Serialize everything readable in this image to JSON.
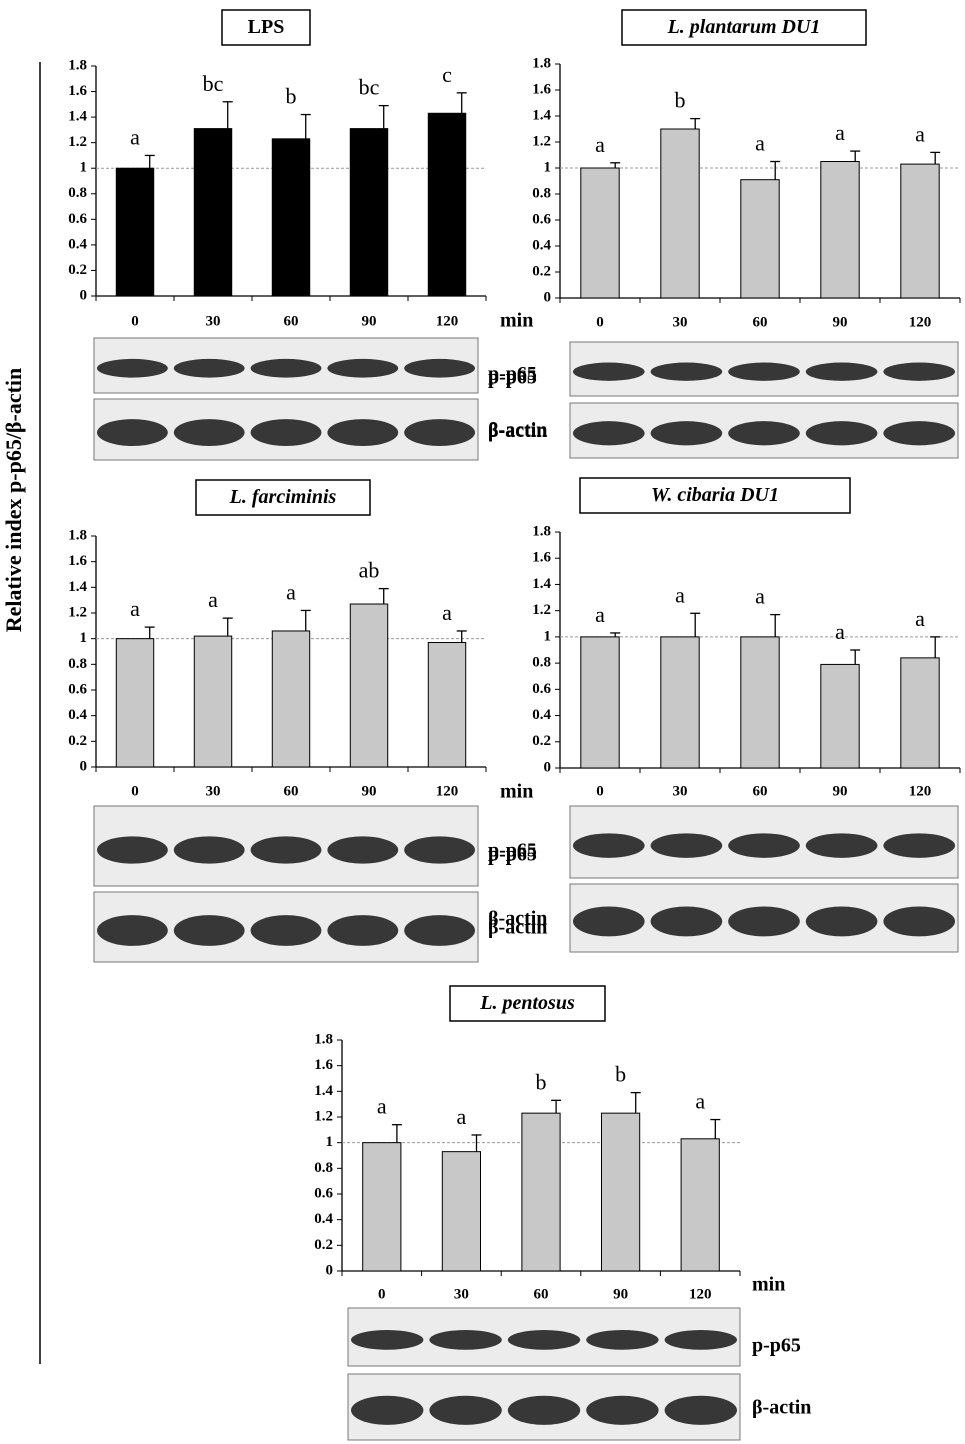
{
  "y_label": "Relative index p-p65/β-actin",
  "chart_data": [
    {
      "type": "bar",
      "title": "LPS",
      "title_italic": false,
      "categories": [
        "0",
        "30",
        "60",
        "90",
        "120"
      ],
      "values": [
        1.0,
        1.31,
        1.23,
        1.31,
        1.43
      ],
      "errors": [
        0.1,
        0.21,
        0.19,
        0.18,
        0.16
      ],
      "annotations": [
        "a",
        "bc",
        "b",
        "bc",
        "c"
      ],
      "color": "#000000",
      "ylim": [
        0,
        1.8
      ],
      "yticks": [
        0,
        0.2,
        0.4,
        0.6,
        0.8,
        1,
        1.2,
        1.4,
        1.6,
        1.8
      ],
      "reference_line": 1,
      "blot_labels": [
        "p-p65",
        "β-actin"
      ]
    },
    {
      "type": "bar",
      "title": "L. plantarum DU1",
      "title_italic": true,
      "categories": [
        "0",
        "30",
        "60",
        "90",
        "120"
      ],
      "values": [
        1.0,
        1.3,
        0.91,
        1.05,
        1.03
      ],
      "errors": [
        0.04,
        0.08,
        0.14,
        0.08,
        0.09
      ],
      "annotations": [
        "a",
        "b",
        "a",
        "a",
        "a"
      ],
      "color": "#c8c8c8",
      "ylim": [
        0,
        1.8
      ],
      "yticks": [
        0,
        0.2,
        0.4,
        0.6,
        0.8,
        1,
        1.2,
        1.4,
        1.6,
        1.8
      ],
      "reference_line": 1,
      "x_label": "min",
      "blot_labels": [
        "p-p65",
        "β-actin"
      ]
    },
    {
      "type": "bar",
      "title": "L. farciminis",
      "title_italic": true,
      "categories": [
        "0",
        "30",
        "60",
        "90",
        "120"
      ],
      "values": [
        1.0,
        1.02,
        1.06,
        1.27,
        0.97
      ],
      "errors": [
        0.09,
        0.14,
        0.16,
        0.12,
        0.09
      ],
      "annotations": [
        "a",
        "a",
        "a",
        "ab",
        "a"
      ],
      "color": "#c8c8c8",
      "ylim": [
        0,
        1.8
      ],
      "yticks": [
        0,
        0.2,
        0.4,
        0.6,
        0.8,
        1,
        1.2,
        1.4,
        1.6,
        1.8
      ],
      "reference_line": 1,
      "x_label": "min",
      "blot_labels": [
        "p-p65",
        "β-actin"
      ]
    },
    {
      "type": "bar",
      "title": "W. cibaria DU1",
      "title_italic": true,
      "categories": [
        "0",
        "30",
        "60",
        "90",
        "120"
      ],
      "values": [
        1.0,
        1.0,
        1.0,
        0.79,
        0.84
      ],
      "errors": [
        0.03,
        0.18,
        0.17,
        0.11,
        0.16
      ],
      "annotations": [
        "a",
        "a",
        "a",
        "a",
        "a"
      ],
      "color": "#c8c8c8",
      "ylim": [
        0,
        1.8
      ],
      "yticks": [
        0,
        0.2,
        0.4,
        0.6,
        0.8,
        1,
        1.2,
        1.4,
        1.6,
        1.8
      ],
      "reference_line": 1,
      "blot_labels": [
        "p-p65",
        "β-actin"
      ]
    },
    {
      "type": "bar",
      "title": "L. pentosus",
      "title_italic": true,
      "categories": [
        "0",
        "30",
        "60",
        "90",
        "120"
      ],
      "values": [
        1.0,
        0.93,
        1.23,
        1.23,
        1.03
      ],
      "errors": [
        0.14,
        0.13,
        0.1,
        0.16,
        0.15
      ],
      "annotations": [
        "a",
        "a",
        "b",
        "b",
        "a"
      ],
      "color": "#c8c8c8",
      "ylim": [
        0,
        1.8
      ],
      "yticks": [
        0,
        0.2,
        0.4,
        0.6,
        0.8,
        1,
        1.2,
        1.4,
        1.6,
        1.8
      ],
      "reference_line": 1,
      "x_label": "min",
      "blot_labels": [
        "p-p65",
        "β-actin"
      ]
    }
  ]
}
